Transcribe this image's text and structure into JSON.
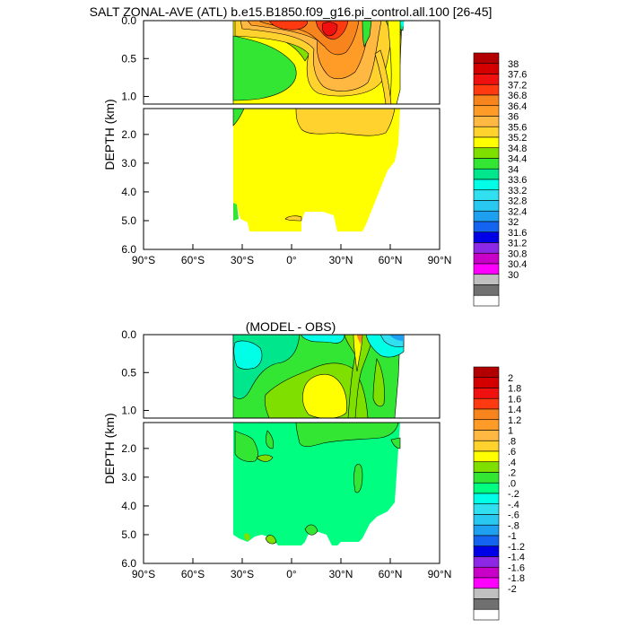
{
  "chart_data": [
    {
      "type": "heatmap",
      "title": "SALT ZONAL-AVE (ATL) b.e15.B1850.f09_g16.pi_control.all.100 [26-45]",
      "ylabel": "DEPTH (km)",
      "x_ticks": [
        "90°S",
        "60°S",
        "30°S",
        "0°",
        "30°N",
        "60°N",
        "90°N"
      ],
      "upper_y_ticks": [
        "0.0",
        "0.5",
        "1.0"
      ],
      "lower_y_ticks": [
        "2.0",
        "3.0",
        "4.0",
        "5.0",
        "6.0"
      ],
      "xlim": [
        -90,
        90
      ],
      "upper_ylim": [
        0,
        1.1
      ],
      "lower_ylim": [
        1.1,
        6.0
      ],
      "colorbar_labels": [
        "38",
        "37.6",
        "37.2",
        "36.8",
        "36.4",
        "36",
        "35.6",
        "35.2",
        "34.8",
        "34.4",
        "34",
        "33.6",
        "33.2",
        "32.8",
        "32.4",
        "32",
        "31.6",
        "31.2",
        "30.8",
        "30.4",
        "30"
      ],
      "colorbar_colors": [
        "#b20000",
        "#d40000",
        "#f01010",
        "#ff3a10",
        "#f7841c",
        "#ff9c28",
        "#ffb842",
        "#ffd22e",
        "#ffff00",
        "#7fe000",
        "#33e633",
        "#00e68c",
        "#00ffe6",
        "#30e0f0",
        "#28c8f0",
        "#1ea0f0",
        "#1464f0",
        "#0000e6",
        "#8c28e6",
        "#c800c8",
        "#ff00ff",
        "#c0c0c0",
        "#707070",
        "#ffffff"
      ]
    },
    {
      "type": "heatmap",
      "title": "(MODEL - OBS)",
      "ylabel": "DEPTH (km)",
      "x_ticks": [
        "90°S",
        "60°S",
        "30°S",
        "0°",
        "30°N",
        "60°N",
        "90°N"
      ],
      "upper_y_ticks": [
        "0.0",
        "0.5",
        "1.0"
      ],
      "lower_y_ticks": [
        "2.0",
        "3.0",
        "4.0",
        "5.0",
        "6.0"
      ],
      "xlim": [
        -90,
        90
      ],
      "upper_ylim": [
        0,
        1.1
      ],
      "lower_ylim": [
        1.1,
        6.0
      ],
      "colorbar_labels": [
        "2",
        "1.8",
        "1.6",
        "1.4",
        "1.2",
        "1",
        ".8",
        ".6",
        ".4",
        ".2",
        ".0",
        "-.2",
        "-.4",
        "-.6",
        "-.8",
        "-1",
        "-1.2",
        "-1.4",
        "-1.6",
        "-1.8",
        "-2"
      ],
      "colorbar_colors": [
        "#b20000",
        "#d40000",
        "#f01010",
        "#ff3a10",
        "#f7841c",
        "#ff9c28",
        "#ffb842",
        "#ffd22e",
        "#ffff00",
        "#7fe000",
        "#33e633",
        "#00ff80",
        "#00ffe6",
        "#30e0f0",
        "#28c8f0",
        "#1ea0f0",
        "#1464f0",
        "#0000e6",
        "#8c28e6",
        "#c800c8",
        "#ff00ff",
        "#c0c0c0",
        "#707070",
        "#ffffff"
      ]
    }
  ]
}
